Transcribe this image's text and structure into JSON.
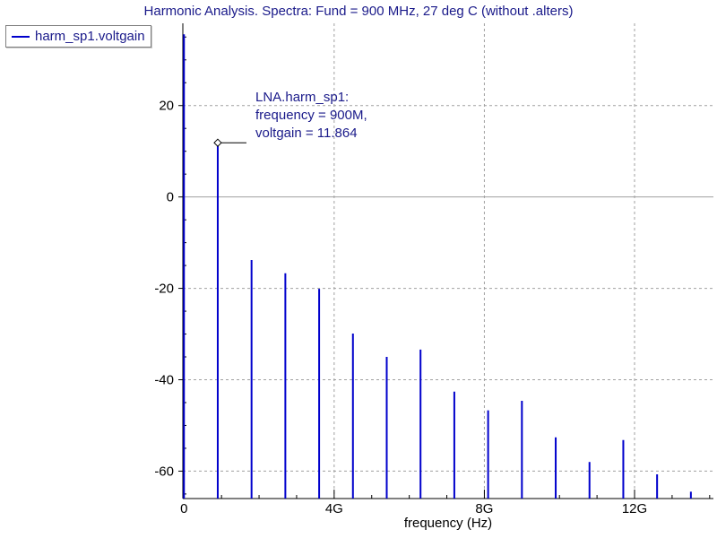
{
  "chart_data": {
    "type": "bar",
    "title": "Harmonic Analysis. Spectra: Fund = 900 MHz, 27 deg C (without .alters)",
    "xlabel": "frequency (Hz)",
    "ylabel": "",
    "xlim": [
      -30000000.0,
      14100000000.0
    ],
    "ylim": [
      -66,
      38
    ],
    "x_ticks": [
      {
        "value": 0,
        "label": "0"
      },
      {
        "value": 4000000000.0,
        "label": "4G"
      },
      {
        "value": 8000000000.0,
        "label": "8G"
      },
      {
        "value": 12000000000.0,
        "label": "12G"
      }
    ],
    "y_ticks": [
      {
        "value": 20,
        "label": "20"
      },
      {
        "value": 0,
        "label": "0"
      },
      {
        "value": -20,
        "label": "-20"
      },
      {
        "value": -40,
        "label": "-40"
      },
      {
        "value": -60,
        "label": "-60"
      }
    ],
    "grid": true,
    "legend_position": "top-left",
    "series": [
      {
        "name": "harm_sp1.voltgain",
        "color": "#0000cc",
        "x": [
          0,
          900000000.0,
          1800000000.0,
          2700000000.0,
          3600000000.0,
          4500000000.0,
          5400000000.0,
          6300000000.0,
          7200000000.0,
          8100000000.0,
          9000000000.0,
          9900000000.0,
          10800000000.0,
          11700000000.0,
          12600000000.0,
          13500000000.0
        ],
        "values": [
          35.6,
          11.864,
          -13.8,
          -16.7,
          -20.1,
          -29.9,
          -35.0,
          -33.4,
          -42.6,
          -46.7,
          -44.6,
          -52.6,
          -58.0,
          -53.2,
          -60.7,
          -64.5
        ]
      }
    ],
    "annotation": {
      "lines": [
        "LNA.harm_sp1:",
        "frequency = 900M,",
        "voltgain = 11.864"
      ],
      "x": 900000000.0,
      "y": 11.864
    }
  }
}
